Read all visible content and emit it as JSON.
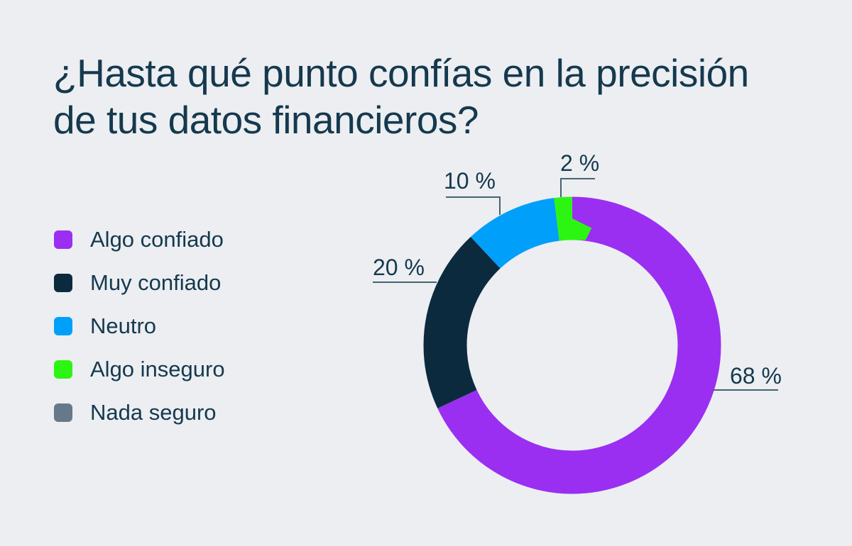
{
  "title": {
    "line1": "¿Hasta qué punto confías en la precisión",
    "line2": "de tus datos financieros?"
  },
  "colors": {
    "background": "#eceef1",
    "text": "#15394e",
    "leader_line": "#456370"
  },
  "chart_data": {
    "type": "pie",
    "subtype": "donut",
    "title": "¿Hasta qué punto confías en la precisión de tus datos financieros?",
    "unit": "%",
    "start_angle_deg": 0,
    "direction": "clockwise",
    "legend_position": "left",
    "donut_hole_ratio": 0.71,
    "slices": [
      {
        "name": "Algo confiado",
        "value": 68,
        "display_label": "68 %",
        "color": "#9a2ff2"
      },
      {
        "name": "Muy confiado",
        "value": 20,
        "display_label": "20 %",
        "color": "#0c2a3e"
      },
      {
        "name": "Neutro",
        "value": 10,
        "display_label": "10 %",
        "color": "#009ffa"
      },
      {
        "name": "Algo inseguro",
        "value": 2,
        "display_label": "2 %",
        "color": "#2df513"
      },
      {
        "name": "Nada seguro",
        "value": 0,
        "display_label": "",
        "color": "#66798b"
      }
    ]
  }
}
